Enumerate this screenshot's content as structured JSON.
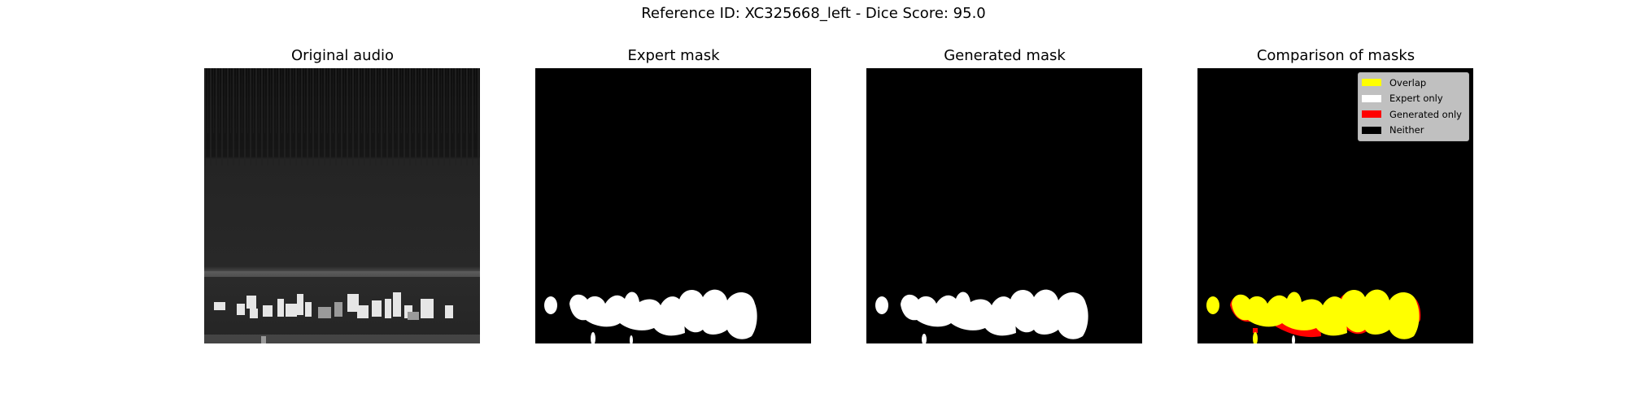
{
  "figure": {
    "suptitle": "Reference ID: XC325668_left - Dice Score: 95.0"
  },
  "panels": [
    {
      "title": "Original audio"
    },
    {
      "title": "Expert mask"
    },
    {
      "title": "Generated mask"
    },
    {
      "title": "Comparison of masks"
    }
  ],
  "legend": {
    "items": [
      {
        "label": "Overlap",
        "color": "#ffff00"
      },
      {
        "label": "Expert only",
        "color": "#ffffff"
      },
      {
        "label": "Generated only",
        "color": "#ff0000"
      },
      {
        "label": "Neither",
        "color": "#000000"
      }
    ]
  }
}
